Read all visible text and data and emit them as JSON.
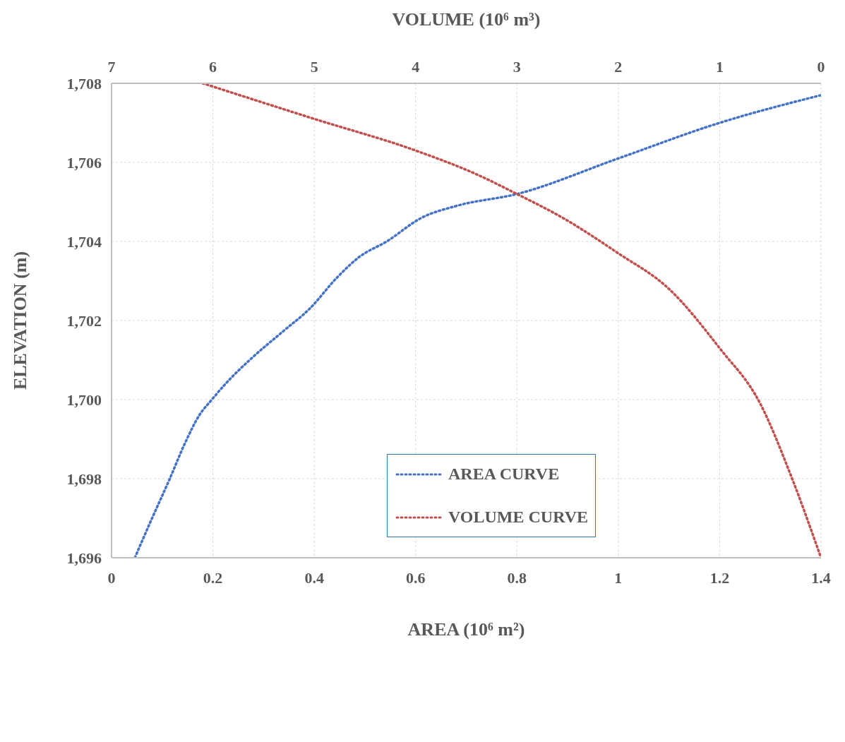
{
  "chart_data": {
    "type": "line",
    "xlabel": "AREA (10⁶ m²)",
    "x2label": "VOLUME (10⁶ m³)",
    "ylabel": "ELEVATION (m)",
    "xlim": [
      0,
      1.4
    ],
    "xticks": [
      0,
      0.2,
      0.4,
      0.6,
      0.8,
      1,
      1.2,
      1.4
    ],
    "x2lim": [
      7,
      0
    ],
    "x2ticks": [
      7,
      6,
      5,
      4,
      3,
      2,
      1,
      0
    ],
    "ylim": [
      1696,
      1708
    ],
    "yticks": [
      {
        "value": 1696,
        "label": "1,696"
      },
      {
        "value": 1698,
        "label": "1,698"
      },
      {
        "value": 1700,
        "label": "1,700"
      },
      {
        "value": 1702,
        "label": "1,702"
      },
      {
        "value": 1704,
        "label": "1,704"
      },
      {
        "value": 1706,
        "label": "1,706"
      },
      {
        "value": 1708,
        "label": "1,708"
      }
    ],
    "grid": true,
    "legend": "center",
    "marker": "none",
    "line_style": "dotted",
    "series": [
      {
        "name": "AREA CURVE",
        "color": "#4472c4",
        "x": [
          0.046,
          0.08,
          0.115,
          0.145,
          0.173,
          0.198,
          0.225,
          0.281,
          0.336,
          0.391,
          0.446,
          0.488,
          0.543,
          0.612,
          0.681,
          0.8,
          1.0,
          1.2,
          1.4
        ],
        "values": [
          1696,
          1697,
          1698,
          1698.9,
          1699.6,
          1700,
          1700.4,
          1701.1,
          1701.7,
          1702.3,
          1703.1,
          1703.6,
          1704,
          1704.6,
          1704.9,
          1705.2,
          1706.1,
          1707,
          1707.7
        ]
      },
      {
        "name": "VOLUME CURVE",
        "color": "#c0504d",
        "axis": "x2",
        "x": [
          6.1,
          5,
          4,
          3.4,
          3,
          2.55,
          2,
          1.5,
          1,
          0.6,
          0.3,
          0
        ],
        "values": [
          1708,
          1707.1,
          1706.3,
          1705.7,
          1705.2,
          1704.6,
          1703.7,
          1702.8,
          1701.3,
          1699.9,
          1698.1,
          1696
        ]
      }
    ]
  }
}
